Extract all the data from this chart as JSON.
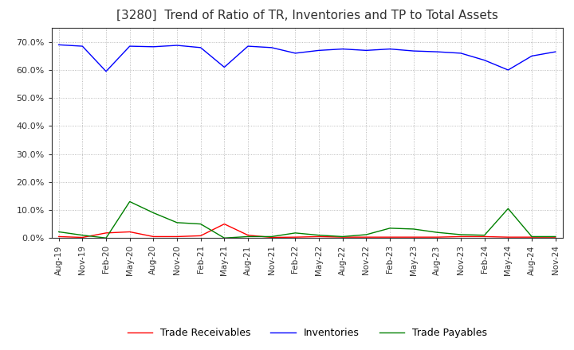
{
  "title": "[3280]  Trend of Ratio of TR, Inventories and TP to Total Assets",
  "x_labels": [
    "Aug-19",
    "Nov-19",
    "Feb-20",
    "May-20",
    "Aug-20",
    "Nov-20",
    "Feb-21",
    "May-21",
    "Aug-21",
    "Nov-21",
    "Feb-22",
    "May-22",
    "Aug-22",
    "Nov-22",
    "Feb-23",
    "May-23",
    "Aug-23",
    "Nov-23",
    "Feb-24",
    "May-24",
    "Aug-24",
    "Nov-24"
  ],
  "trade_receivables": [
    0.005,
    0.002,
    0.018,
    0.022,
    0.005,
    0.005,
    0.008,
    0.05,
    0.01,
    0.002,
    0.003,
    0.005,
    0.003,
    0.003,
    0.003,
    0.003,
    0.003,
    0.005,
    0.005,
    0.003,
    0.003,
    0.003
  ],
  "inventories": [
    0.69,
    0.685,
    0.595,
    0.685,
    0.683,
    0.688,
    0.68,
    0.61,
    0.685,
    0.68,
    0.66,
    0.67,
    0.675,
    0.67,
    0.675,
    0.668,
    0.665,
    0.66,
    0.635,
    0.6,
    0.65,
    0.665
  ],
  "trade_payables": [
    0.022,
    0.01,
    0.0,
    0.13,
    0.09,
    0.055,
    0.05,
    0.0,
    0.005,
    0.005,
    0.018,
    0.01,
    0.005,
    0.012,
    0.035,
    0.032,
    0.02,
    0.012,
    0.01,
    0.105,
    0.005,
    0.005
  ],
  "tr_color": "#ff0000",
  "inv_color": "#0000ff",
  "tp_color": "#008000",
  "ylim": [
    0.0,
    0.75
  ],
  "yticks": [
    0.0,
    0.1,
    0.2,
    0.3,
    0.4,
    0.5,
    0.6,
    0.7
  ],
  "ytick_labels": [
    "0.0%",
    "10.0%",
    "20.0%",
    "30.0%",
    "40.0%",
    "50.0%",
    "60.0%",
    "70.0%"
  ],
  "background_color": "#ffffff",
  "plot_bg_color": "#ffffff",
  "grid_color": "#aaaaaa",
  "title_fontsize": 11,
  "legend_labels": [
    "Trade Receivables",
    "Inventories",
    "Trade Payables"
  ]
}
